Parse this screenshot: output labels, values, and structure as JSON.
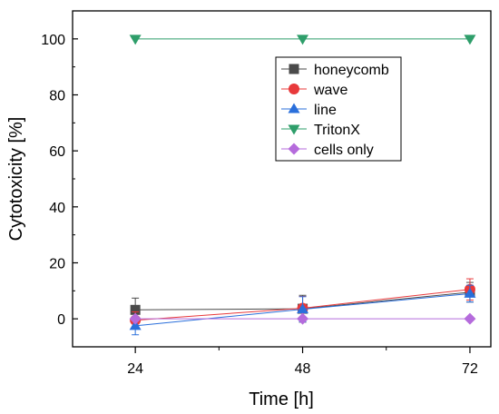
{
  "chart_data": {
    "type": "line",
    "xlabel": "Time [h]",
    "ylabel": "Cytotoxicity [%]",
    "x": [
      24,
      48,
      72
    ],
    "x_ticks": [
      24,
      48,
      72
    ],
    "xlim": [
      15,
      75
    ],
    "ylim": [
      -10,
      110
    ],
    "y_ticks": [
      0,
      20,
      40,
      60,
      80,
      100
    ],
    "grid": false,
    "legend_position": "top-right",
    "series": [
      {
        "name": "honeycomb",
        "marker": "square",
        "color": "#4a4a4a",
        "values": [
          3.2,
          3.6,
          9.5
        ],
        "errors": [
          4.2,
          4.8,
          3.5
        ]
      },
      {
        "name": "wave",
        "marker": "circle",
        "color": "#e8393b",
        "values": [
          -0.5,
          3.8,
          10.5
        ],
        "errors": [
          3.0,
          4.2,
          3.8
        ]
      },
      {
        "name": "line",
        "marker": "triangle-up",
        "color": "#2a6fdb",
        "values": [
          -2.5,
          3.4,
          9.0
        ],
        "errors": [
          3.2,
          4.5,
          3.0
        ]
      },
      {
        "name": "TritonX",
        "marker": "triangle-down",
        "color": "#2e9e6a",
        "values": [
          100,
          100,
          100
        ],
        "errors": [
          0,
          0,
          0
        ]
      },
      {
        "name": "cells only",
        "marker": "diamond",
        "color": "#b56bdc",
        "values": [
          0,
          0,
          0
        ],
        "errors": [
          0,
          0,
          0
        ]
      }
    ]
  }
}
